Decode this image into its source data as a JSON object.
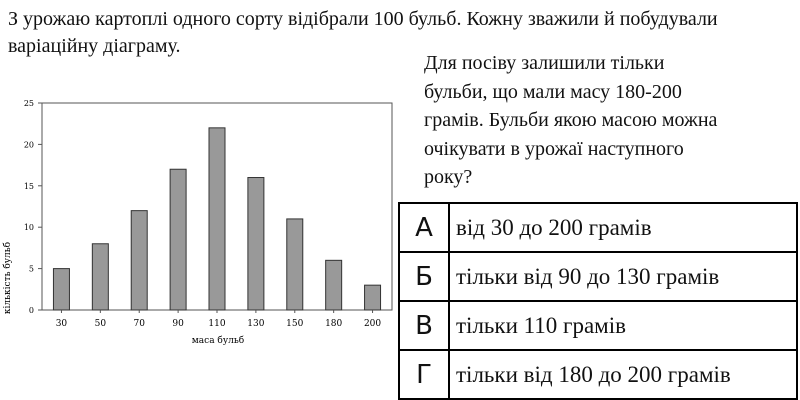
{
  "intro": "З урожаю картоплі одного сорту відібрали 100 бульб. Кожну зважили й побудували варіаційну діаграму.",
  "question": "Для посіву залишили тільки бульби, що мали масу 180-200 грамів. Бульби якою масою можна очікувати в урожаї наступного року?",
  "answers": [
    {
      "letter": "А",
      "text": "від 30 до 200 грамів"
    },
    {
      "letter": "Б",
      "text": "тільки від 90 до 130 грамів"
    },
    {
      "letter": "В",
      "text": "тільки 110 грамів"
    },
    {
      "letter": "Г",
      "text": "тільки від 180 до 200 грамів"
    }
  ],
  "chart_data": {
    "type": "bar",
    "categories": [
      "30",
      "50",
      "70",
      "90",
      "110",
      "130",
      "150",
      "180",
      "200"
    ],
    "values": [
      5,
      8,
      12,
      17,
      22,
      16,
      11,
      6,
      3
    ],
    "xlabel": "маса бульб",
    "ylabel": "кількість бульб",
    "ylim": [
      0,
      25
    ],
    "yticks": [
      0,
      5,
      10,
      15,
      20,
      25
    ],
    "grid": false,
    "bar_color": "#999999"
  }
}
